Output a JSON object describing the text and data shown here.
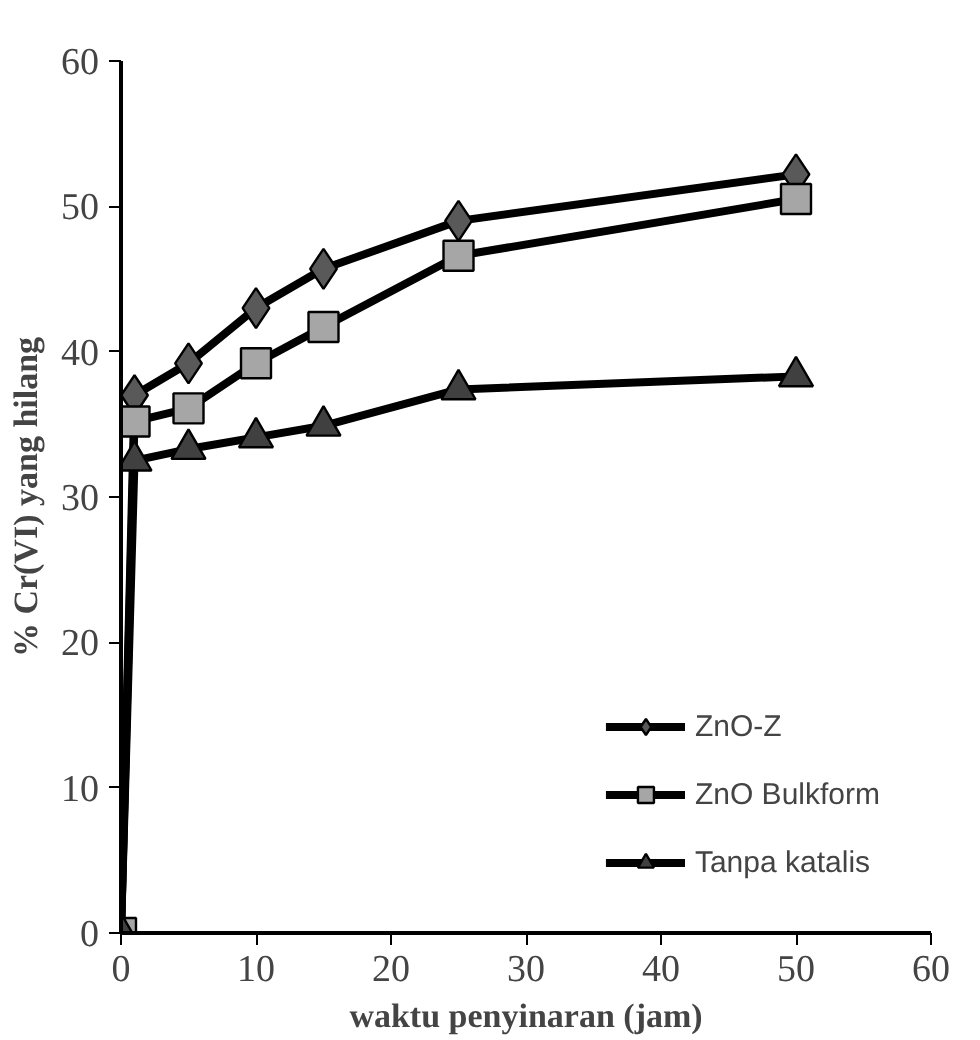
{
  "chart_data": {
    "type": "line",
    "xlabel": "waktu penyinaran (jam)",
    "ylabel": "% Cr(VI) yang hilang",
    "x": [
      0,
      1,
      5,
      10,
      15,
      25,
      50
    ],
    "series": [
      {
        "name": "ZnO-Z",
        "color": "#595959",
        "marker": "diamond",
        "values": [
          0,
          37.0,
          39.2,
          43.0,
          45.7,
          49.0,
          52.2
        ]
      },
      {
        "name": "ZnO Bulkform",
        "color": "#a6a6a6",
        "marker": "square",
        "values": [
          0,
          35.2,
          36.1,
          39.2,
          41.7,
          46.6,
          50.5
        ]
      },
      {
        "name": "Tanpa katalis",
        "color": "#404040",
        "marker": "triangle",
        "values": [
          0,
          32.5,
          33.3,
          34.1,
          34.9,
          37.4,
          38.3
        ]
      }
    ],
    "xlim": [
      0,
      60
    ],
    "xticks": [
      0,
      10,
      20,
      30,
      40,
      50,
      60
    ],
    "ylim": [
      0,
      60
    ],
    "yticks": [
      0,
      10,
      20,
      30,
      40,
      50,
      60
    ],
    "grid": false,
    "legend": "bottom right",
    "line_style": "solid"
  }
}
